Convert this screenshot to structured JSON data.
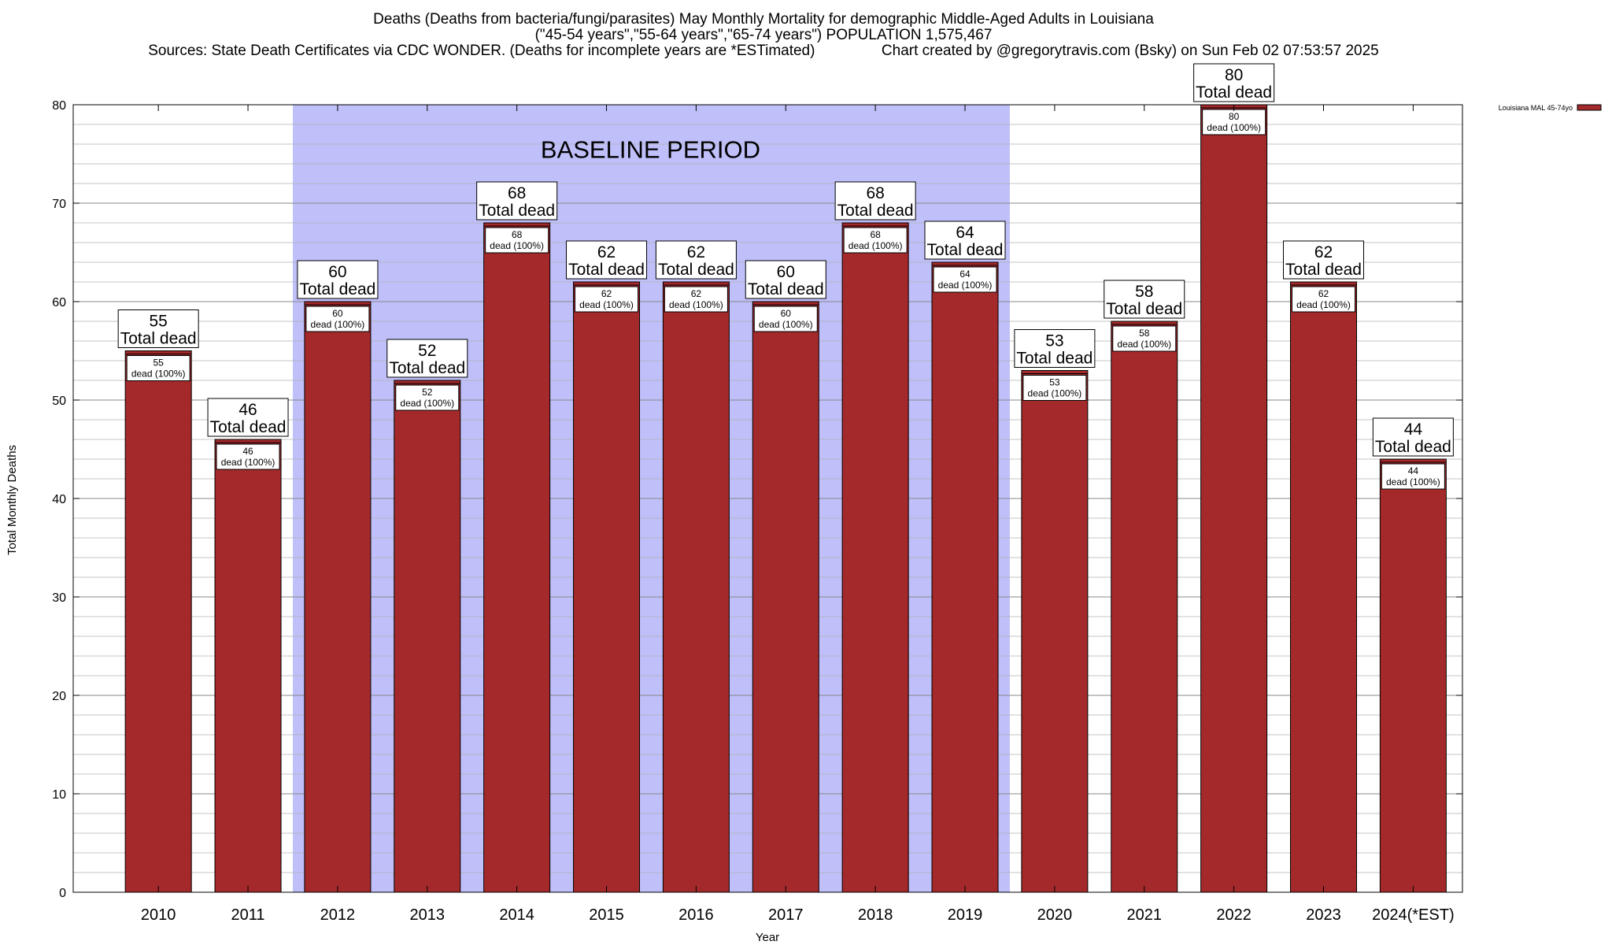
{
  "title": {
    "line1": "Deaths (Deaths from bacteria/fungi/parasites) May Monthly Mortality for demographic Middle-Aged Adults in Louisiana",
    "line2": "(\"45-54 years\",\"55-64 years\",\"65-74 years\") POPULATION 1,575,467",
    "line3": "Sources: State Death Certificates via CDC WONDER. (Deaths for incomplete years are *ESTimated)                Chart created by @gregorytravis.com (Bsky) on Sun Feb 02 07:53:57 2025"
  },
  "colors": {
    "bar": "#a4292b",
    "baseline_band": "#bfbffa",
    "grid": "#b0b0b0"
  },
  "chart_data": {
    "type": "bar",
    "xlabel": "Year",
    "ylabel": "Total Monthly Deaths",
    "ylim": [
      0,
      80
    ],
    "yticks": [
      0,
      10,
      20,
      30,
      40,
      50,
      60,
      70,
      80
    ],
    "grid": true,
    "legend_position": "top-right",
    "categories": [
      "2010",
      "2011",
      "2012",
      "2013",
      "2014",
      "2015",
      "2016",
      "2017",
      "2018",
      "2019",
      "2020",
      "2021",
      "2022",
      "2023",
      "2024(*EST)"
    ],
    "series": [
      {
        "name": "Louisiana MAL 45-74yo",
        "values": [
          55,
          46,
          60,
          52,
          68,
          62,
          62,
          60,
          68,
          64,
          53,
          58,
          80,
          62,
          44
        ]
      }
    ],
    "total_label_suffix": "Total dead",
    "inner_label_suffix": "dead (100%)",
    "baseline_period": {
      "label": "BASELINE PERIOD",
      "start_category": "2012",
      "end_category": "2019"
    }
  }
}
